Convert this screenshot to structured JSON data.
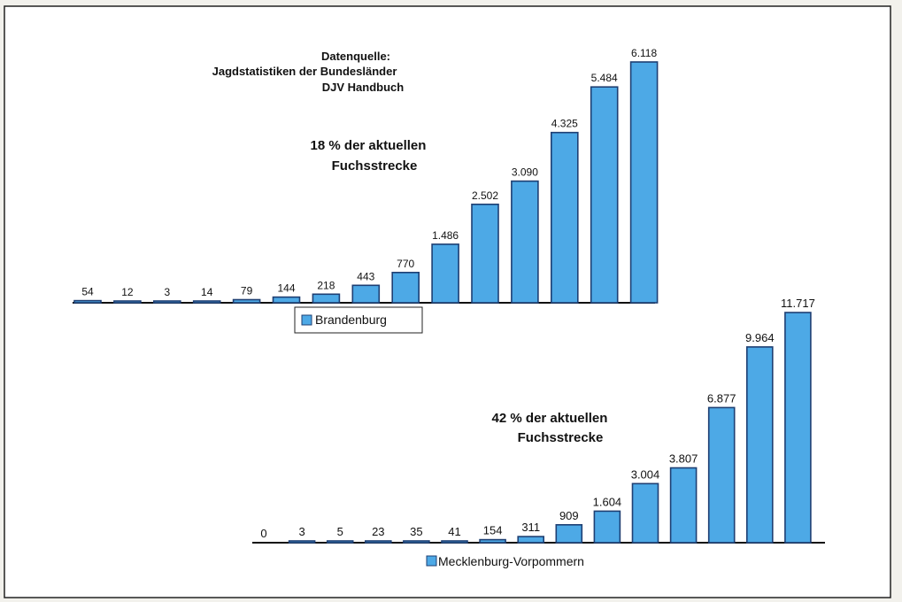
{
  "source_note": {
    "line1": "Datenquelle:",
    "line2": "Jagdstatistiken der Bundesländer",
    "line3": "DJV Handbuch"
  },
  "colors": {
    "bar_fill": "#4da9e6",
    "bar_stroke": "#1e3f73",
    "page_background": "#f2f1ec",
    "panel_background": "#ffffff"
  },
  "chart_data": [
    {
      "type": "bar",
      "series": [
        {
          "name": "Brandenburg",
          "values": [
            54,
            12,
            3,
            14,
            79,
            144,
            218,
            443,
            770,
            1486,
            2502,
            3090,
            4325,
            5484,
            6118
          ]
        }
      ],
      "data_labels": [
        "54",
        "12",
        "3",
        "14",
        "79",
        "144",
        "218",
        "443",
        "770",
        "1.486",
        "2.502",
        "3.090",
        "4.325",
        "5.484",
        "6.118"
      ],
      "annotation": {
        "line1": "18 % der aktuellen",
        "line2": "Fuchsstrecke"
      },
      "legend": {
        "label": "Brandenburg",
        "placement": "bottom-center"
      },
      "grid": false,
      "ylim": [
        0,
        6118
      ]
    },
    {
      "type": "bar",
      "series": [
        {
          "name": "Mecklenburg-Vorpommern",
          "values": [
            0,
            3,
            5,
            23,
            35,
            41,
            154,
            311,
            909,
            1604,
            3004,
            3807,
            6877,
            9964,
            11717
          ]
        }
      ],
      "data_labels": [
        "0",
        "3",
        "5",
        "23",
        "35",
        "41",
        "154",
        "311",
        "909",
        "1.604",
        "3.004",
        "3.807",
        "6.877",
        "9.964",
        "11.717"
      ],
      "annotation": {
        "line1": "42 % der aktuellen",
        "line2": "Fuchsstrecke"
      },
      "legend": {
        "label": "Mecklenburg-Vorpommern",
        "placement": "bottom-center"
      },
      "grid": false,
      "ylim": [
        0,
        11717
      ]
    }
  ]
}
